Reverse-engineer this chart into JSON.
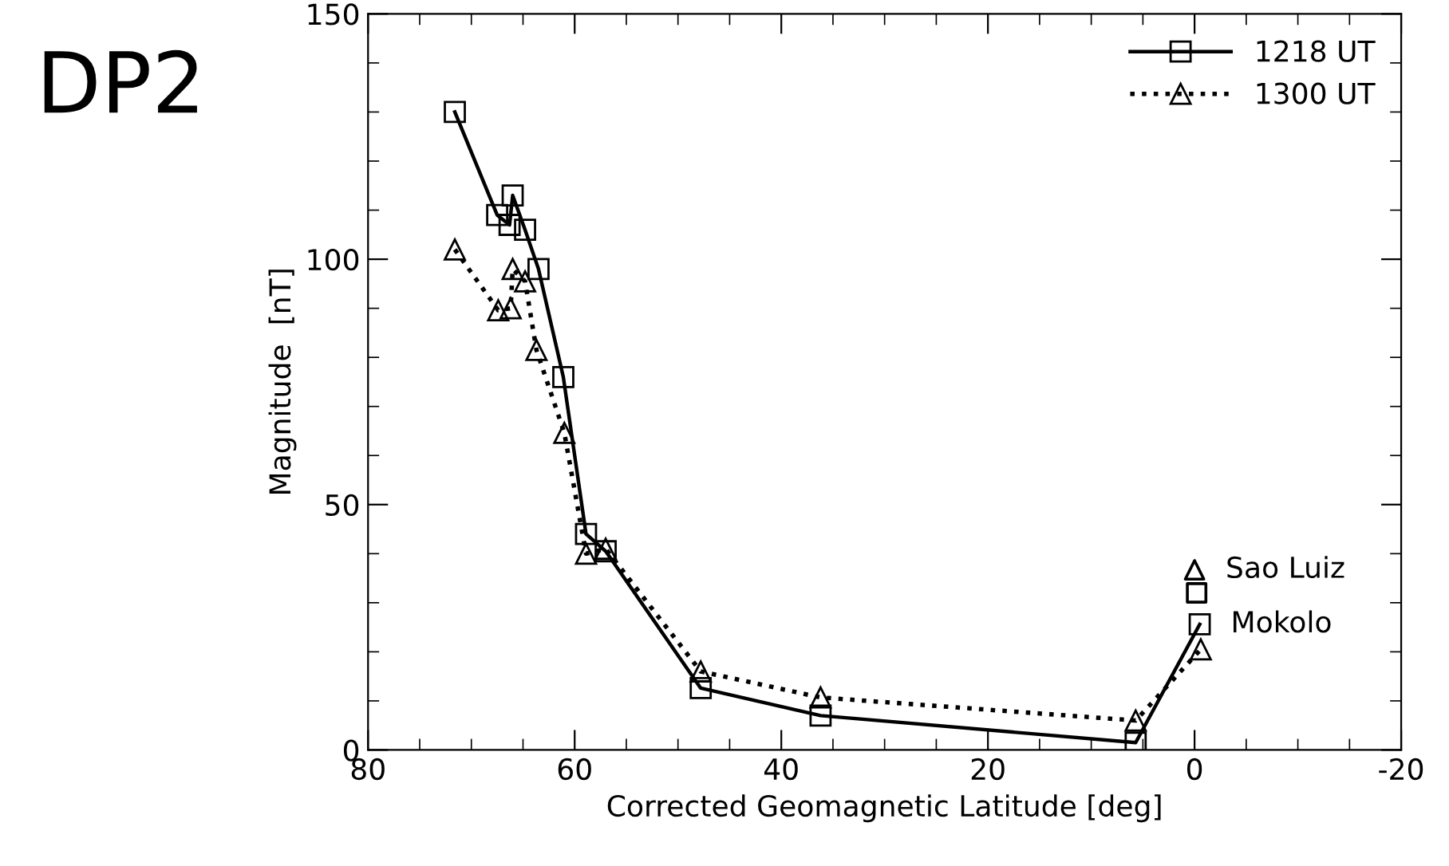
{
  "chart_data": {
    "type": "line",
    "title": "DP2",
    "xlabel": "Corrected Geomagnetic Latitude [deg]",
    "ylabel": "Magnitude  [nT]",
    "xlim": [
      80,
      -20
    ],
    "xticks": [
      80,
      60,
      40,
      20,
      0,
      -20
    ],
    "ylim": [
      0,
      150
    ],
    "yticks": [
      0,
      50,
      100,
      150
    ],
    "grid": false,
    "legend": "top right",
    "series": [
      {
        "name": "1218 UT",
        "color": "#000000",
        "marker": "square",
        "line_style": "solid",
        "x": [
          71.6,
          67.5,
          66.3,
          66.0,
          64.8,
          63.5,
          61.1,
          58.9,
          57.0,
          47.8,
          36.2,
          5.7,
          -0.5
        ],
        "values": [
          130,
          109,
          107,
          113,
          106,
          98,
          76,
          44,
          40.5,
          12.6,
          7,
          1.5,
          25.6
        ]
      },
      {
        "name": "1300 UT",
        "color": "#000000",
        "marker": "triangle",
        "line_style": "dotted",
        "x": [
          71.6,
          67.4,
          66.2,
          66.0,
          64.8,
          63.7,
          61.0,
          58.9,
          57.0,
          47.8,
          36.2,
          5.7,
          -0.6
        ],
        "values": [
          102,
          89.6,
          90,
          98,
          95.5,
          81.5,
          64.6,
          40,
          41,
          16,
          10.7,
          6,
          20.5
        ]
      },
      {
        "type": "scatter",
        "color": "#000000",
        "marker": "square",
        "x": [
          -0.2
        ],
        "values": [
          32
        ]
      },
      {
        "type": "scatter",
        "color": "#000000",
        "marker": "triangle",
        "x": [
          0.0
        ],
        "values": [
          36.7
        ]
      }
    ],
    "annotations": [
      {
        "text": "Sao Luiz",
        "x": 0.0,
        "y": 36.7
      },
      {
        "text": "Mokolo",
        "x": -0.5,
        "y": 25.6
      }
    ]
  }
}
